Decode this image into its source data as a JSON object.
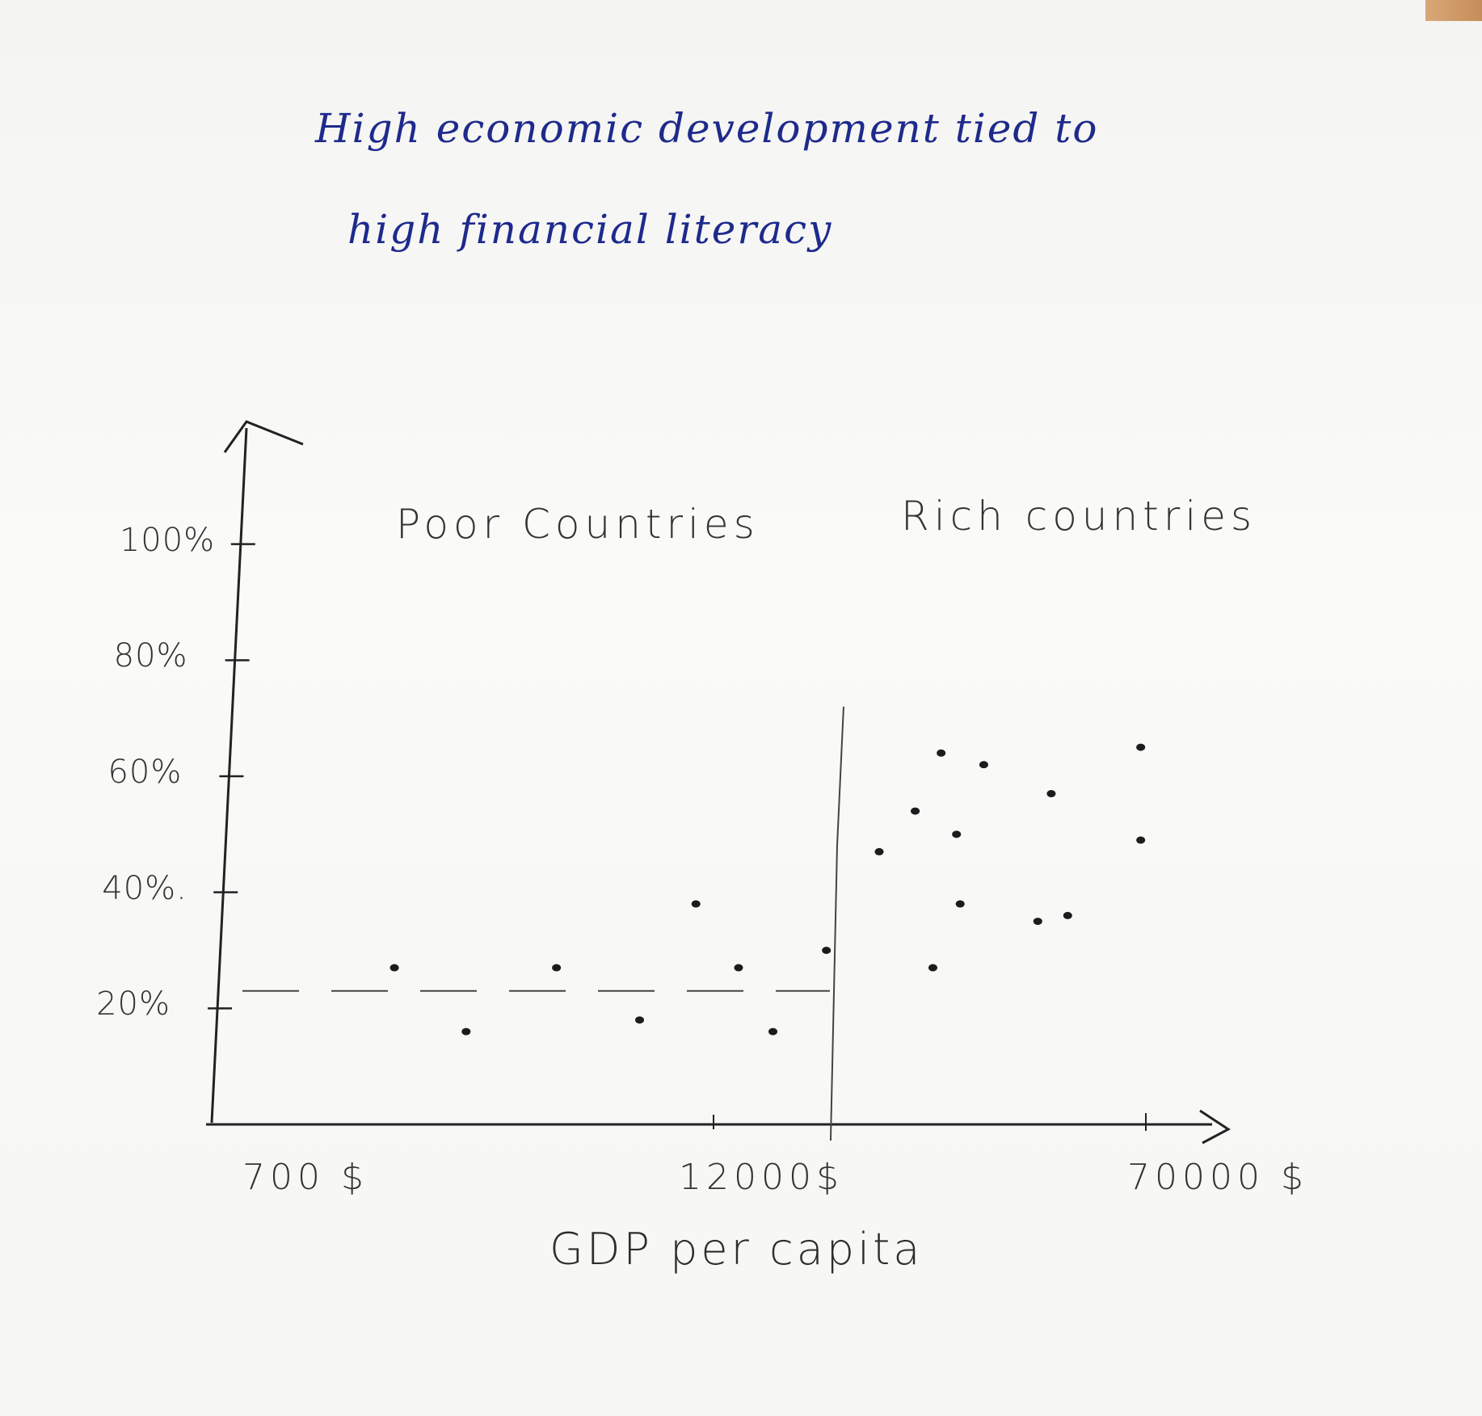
{
  "title_lines": [
    "High economic development tied to",
    "high financial literacy"
  ],
  "chart_data": {
    "type": "scatter",
    "title": "High economic development tied to high financial literacy",
    "xlabel": "GDP per capita",
    "ylabel": "",
    "x_tick_labels": [
      "700 $",
      "12000$",
      "70000 $"
    ],
    "y_tick_labels": [
      "20%",
      "40%.",
      "60%",
      "80%",
      "100%"
    ],
    "y_ticks": [
      20,
      40,
      60,
      80,
      100
    ],
    "ylim": [
      0,
      120
    ],
    "annotations": [
      "Poor Countries",
      "Rich countries"
    ],
    "x_scale": "log",
    "grid": false,
    "reference_line_y": 23,
    "divider_x": 12000,
    "series": [
      {
        "points": [
          {
            "x": 1000,
            "y": 27
          },
          {
            "x": 1500,
            "y": 16
          },
          {
            "x": 2500,
            "y": 27
          },
          {
            "x": 4000,
            "y": 18
          },
          {
            "x": 5500,
            "y": 38
          },
          {
            "x": 7000,
            "y": 27
          },
          {
            "x": 8500,
            "y": 16
          },
          {
            "x": 11500,
            "y": 30
          }
        ]
      },
      {
        "points": [
          {
            "x": 15500,
            "y": 47
          },
          {
            "x": 19000,
            "y": 54
          },
          {
            "x": 21000,
            "y": 27
          },
          {
            "x": 22000,
            "y": 64
          },
          {
            "x": 24000,
            "y": 50
          },
          {
            "x": 24500,
            "y": 38
          },
          {
            "x": 28000,
            "y": 62
          },
          {
            "x": 38000,
            "y": 35
          },
          {
            "x": 41000,
            "y": 57
          },
          {
            "x": 45000,
            "y": 36
          },
          {
            "x": 68000,
            "y": 65
          },
          {
            "x": 68000,
            "y": 49
          }
        ]
      }
    ]
  }
}
